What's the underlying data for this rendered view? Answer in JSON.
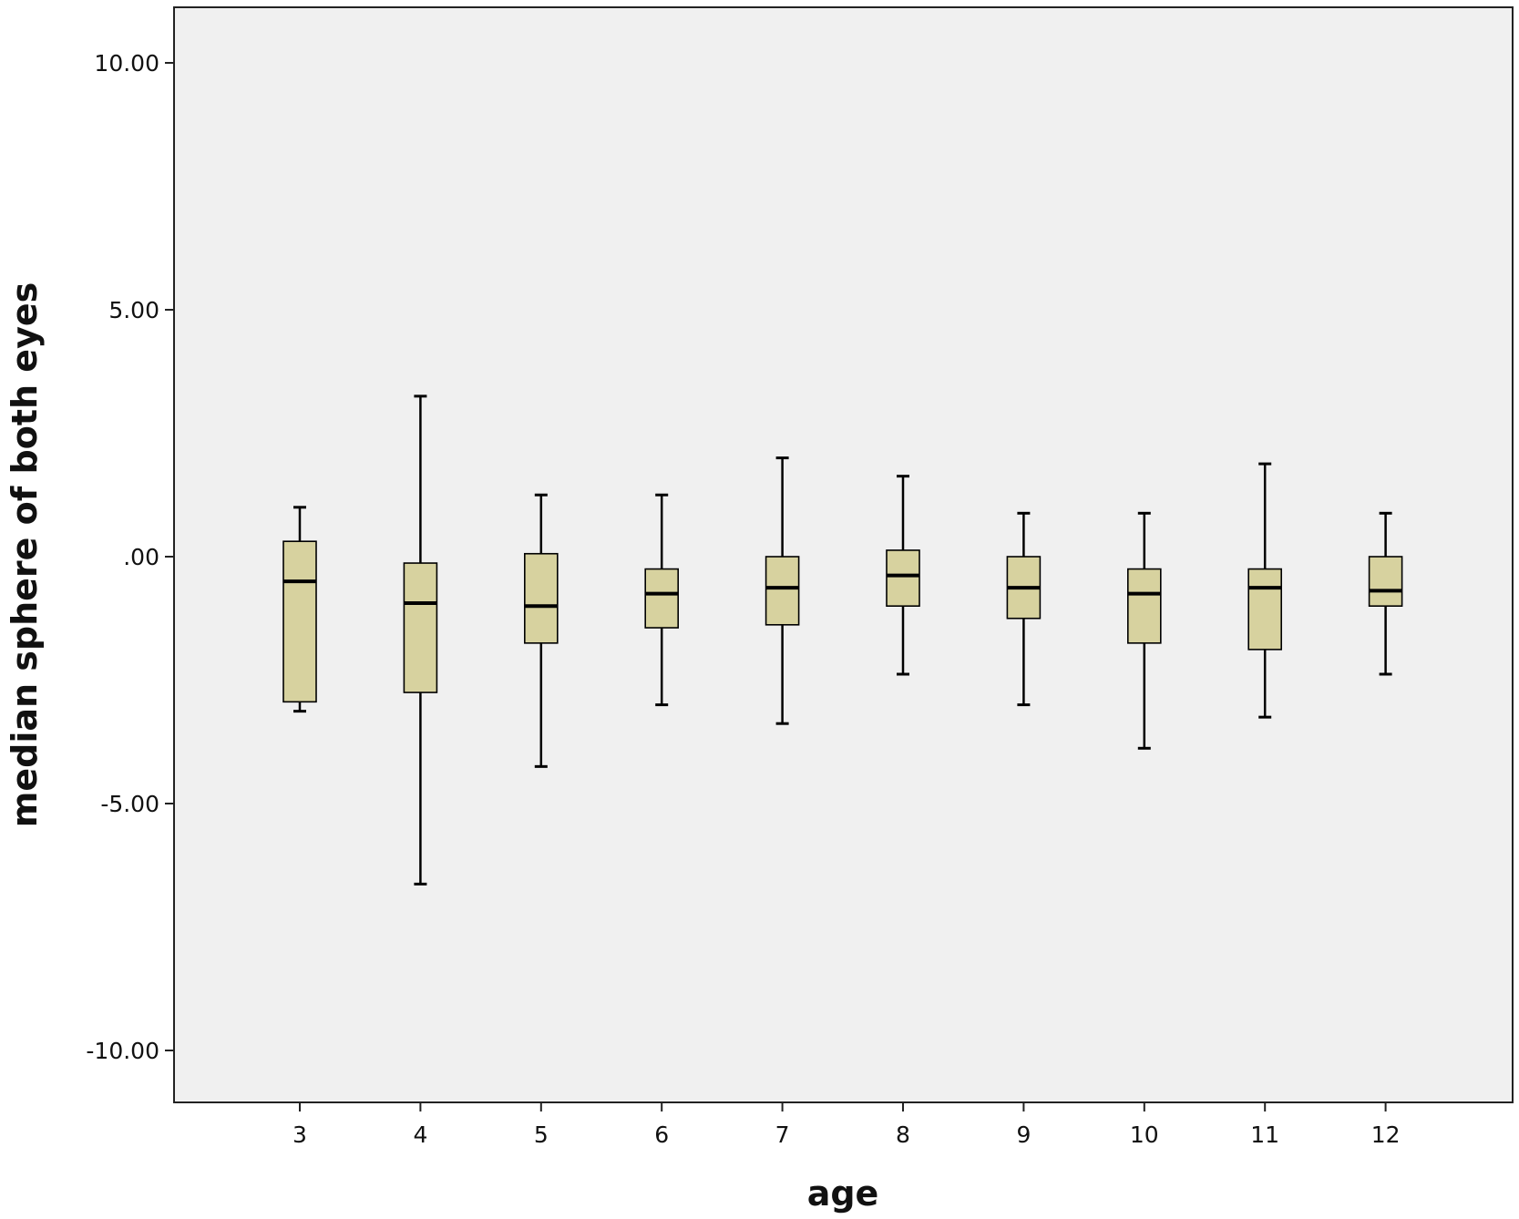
{
  "chart_data": {
    "type": "boxplot",
    "xlabel": "age",
    "ylabel": "median sphere of both eyes",
    "ylim": [
      -11.1,
      11.2
    ],
    "y_ticks": [
      10.0,
      5.0,
      0.0,
      -5.0,
      -10.0
    ],
    "y_tick_labels": [
      "10.00",
      "5.00",
      ".00",
      "-5.00",
      "-10.00"
    ],
    "categories": [
      "3",
      "4",
      "5",
      "6",
      "7",
      "8",
      "9",
      "10",
      "11",
      "12"
    ],
    "boxes": [
      {
        "category": "3",
        "whisker_low": -3.13,
        "q1": -2.94,
        "median": -0.5,
        "q3": 0.31,
        "whisker_high": 1.0
      },
      {
        "category": "4",
        "whisker_low": -6.63,
        "q1": -2.75,
        "median": -0.94,
        "q3": -0.13,
        "whisker_high": 3.25
      },
      {
        "category": "5",
        "whisker_low": -4.25,
        "q1": -1.75,
        "median": -1.0,
        "q3": 0.06,
        "whisker_high": 1.25
      },
      {
        "category": "6",
        "whisker_low": -3.0,
        "q1": -1.44,
        "median": -0.75,
        "q3": -0.25,
        "whisker_high": 1.25
      },
      {
        "category": "7",
        "whisker_low": -3.38,
        "q1": -1.38,
        "median": -0.63,
        "q3": 0.0,
        "whisker_high": 2.0
      },
      {
        "category": "8",
        "whisker_low": -2.38,
        "q1": -1.0,
        "median": -0.38,
        "q3": 0.13,
        "whisker_high": 1.63
      },
      {
        "category": "9",
        "whisker_low": -3.0,
        "q1": -1.25,
        "median": -0.63,
        "q3": 0.0,
        "whisker_high": 0.88
      },
      {
        "category": "10",
        "whisker_low": -3.88,
        "q1": -1.75,
        "median": -0.75,
        "q3": -0.25,
        "whisker_high": 0.88
      },
      {
        "category": "11",
        "whisker_low": -3.25,
        "q1": -1.88,
        "median": -0.63,
        "q3": -0.25,
        "whisker_high": 1.88
      },
      {
        "category": "12",
        "whisker_low": -2.38,
        "q1": -1.0,
        "median": -0.69,
        "q3": 0.0,
        "whisker_high": 0.88
      }
    ],
    "colors": {
      "plot_background": "#f0f0f0",
      "box_fill": "#d7d29f",
      "stroke": "#000000"
    },
    "grid": false,
    "legend": "none"
  }
}
